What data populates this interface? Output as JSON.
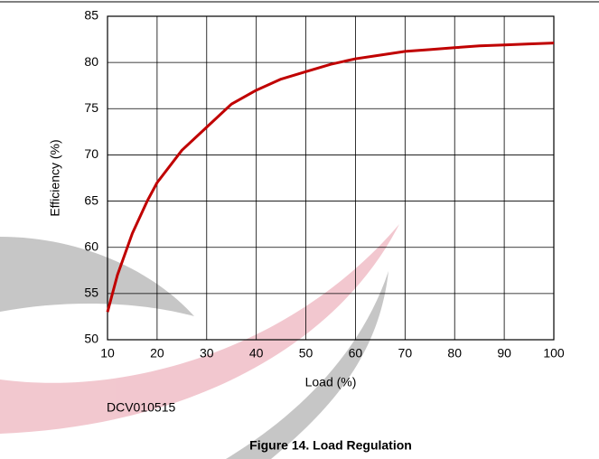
{
  "chart_data": {
    "type": "line",
    "x_label": "Load (%)",
    "y_label": "Efficiency (%)",
    "note": "DCV010515",
    "caption": "Figure 14. Load Regulation",
    "x": [
      10,
      12,
      15,
      18,
      20,
      25,
      30,
      35,
      40,
      45,
      50,
      55,
      60,
      65,
      70,
      75,
      80,
      85,
      90,
      95,
      100
    ],
    "series": [
      {
        "name": "Efficiency",
        "color": "#c00000",
        "values": [
          53,
          57,
          61.5,
          65,
          67,
          70.5,
          73,
          75.5,
          77,
          78.2,
          79,
          79.8,
          80.4,
          80.8,
          81.2,
          81.4,
          81.6,
          81.8,
          81.9,
          82,
          82.1
        ]
      }
    ],
    "xlim": [
      10,
      100
    ],
    "ylim": [
      50,
      85
    ],
    "xticks": [
      10,
      20,
      30,
      40,
      50,
      60,
      70,
      80,
      90,
      100
    ],
    "yticks": [
      50,
      55,
      60,
      65,
      70,
      75,
      80,
      85
    ],
    "grid": true
  }
}
